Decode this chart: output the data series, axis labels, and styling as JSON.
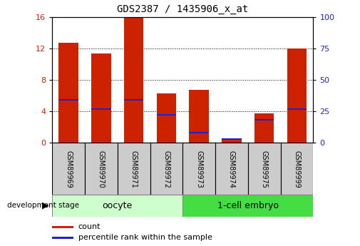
{
  "title": "GDS2387 / 1435906_x_at",
  "samples": [
    "GSM89969",
    "GSM89970",
    "GSM89971",
    "GSM89972",
    "GSM89973",
    "GSM89974",
    "GSM89975",
    "GSM89999"
  ],
  "count_values": [
    12.7,
    11.4,
    16.0,
    6.3,
    6.7,
    0.5,
    3.7,
    12.0
  ],
  "percentile_values": [
    34.0,
    27.0,
    34.0,
    22.0,
    8.0,
    3.0,
    18.0,
    27.0
  ],
  "bar_color": "#cc2200",
  "blue_color": "#2222cc",
  "ylim_left": [
    0,
    16
  ],
  "ylim_right": [
    0,
    100
  ],
  "yticks_left": [
    0,
    4,
    8,
    12,
    16
  ],
  "yticks_right": [
    0,
    25,
    50,
    75,
    100
  ],
  "bar_width": 0.6,
  "background_color": "#ffffff",
  "grid_color": "#000000",
  "label_count": "count",
  "label_percentile": "percentile rank within the sample",
  "group_label": "development stage",
  "tick_label_color_left": "#cc2200",
  "tick_label_color_right": "#2222cc",
  "oocyte_color": "#ccffcc",
  "embryo_color": "#44dd44",
  "sample_box_color": "#cccccc",
  "group_boundary": 4,
  "n_samples": 8
}
